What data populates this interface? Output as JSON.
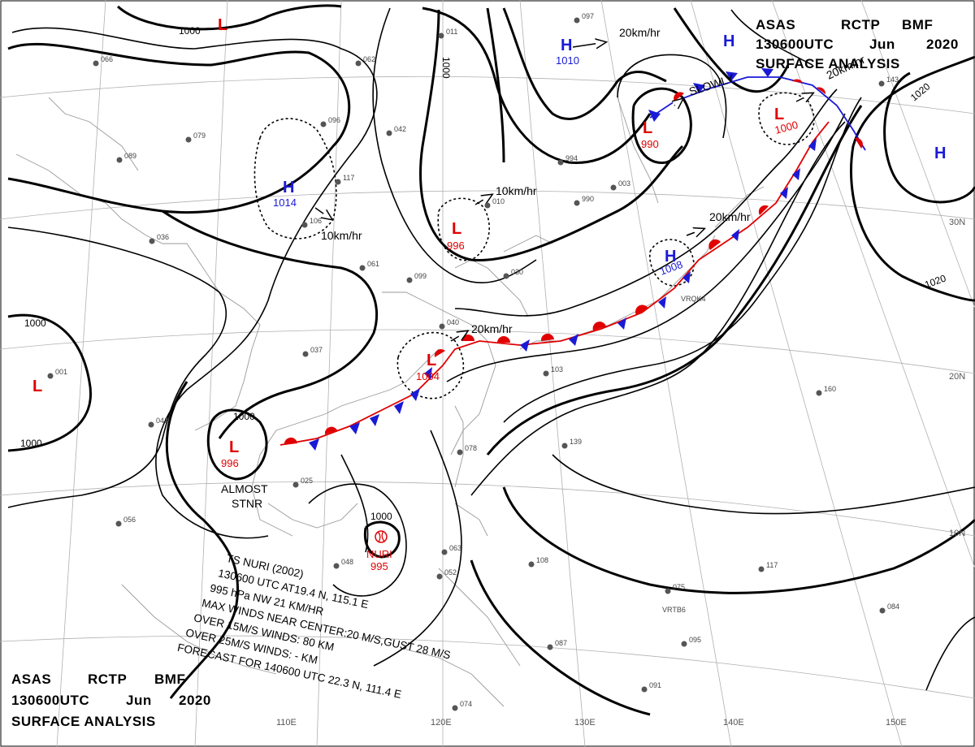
{
  "header_top": {
    "line1": [
      "ASAS",
      "RCTP",
      "BMF"
    ],
    "line2": [
      "130600UTC",
      "Jun",
      "2020"
    ],
    "line3": "SURFACE ANALYSIS"
  },
  "header_bottom": {
    "line1": [
      "ASAS",
      "RCTP",
      "BMF"
    ],
    "line2": [
      "130600UTC",
      "Jun",
      "2020"
    ],
    "line3": "SURFACE ANALYSIS"
  },
  "typhoon_info": [
    "TS NURI  (2002)",
    "130600 UTC  AT19.4 N, 115.1 E",
    "995 hPa  NW  21 KM/HR",
    "MAX WINDS NEAR CENTER:20 M/S,GUST 28 M/S",
    "OVER 15M/S WINDS: 80 KM",
    "OVER 25M/S WINDS: - KM",
    "FORECAST FOR 140600 UTC 22.3 N, 111.4 E"
  ],
  "longitude_labels": [
    "110E",
    "120E",
    "130E",
    "140E",
    "150E"
  ],
  "latitude_labels": [
    "30N",
    "20N",
    "10N"
  ],
  "isobar_labels": [
    "1000",
    "1000",
    "1000",
    "1000",
    "1000",
    "1000",
    "1020",
    "1020"
  ],
  "pressure_systems": [
    {
      "type": "L",
      "pressure": ""
    },
    {
      "type": "H",
      "pressure": "1010"
    },
    {
      "type": "H",
      "pressure": ""
    },
    {
      "type": "L",
      "pressure": "990"
    },
    {
      "type": "L",
      "pressure": "1000"
    },
    {
      "type": "H",
      "pressure": ""
    },
    {
      "type": "H",
      "pressure": "1014"
    },
    {
      "type": "L",
      "pressure": "996"
    },
    {
      "type": "H",
      "pressure": "1008"
    },
    {
      "type": "L",
      "pressure": "1004"
    },
    {
      "type": "L",
      "pressure": ""
    },
    {
      "type": "L",
      "pressure": "996"
    }
  ],
  "typhoon": {
    "name": "NURI",
    "pressure": "995"
  },
  "speed_labels": [
    "20km/hr",
    "10km/hr",
    "10km/hr",
    "20km/hr",
    "20km/hr",
    "20km/hr"
  ],
  "notes": {
    "slowly": "SLOWLY",
    "almost": "ALMOST",
    "stnr": "STNR"
  },
  "station_labels": [
    "VRTB6",
    "VRQK4"
  ],
  "station_obs": [
    "066",
    "062",
    "011",
    "097",
    "143",
    "079",
    "096",
    "042",
    "117",
    "089",
    "106",
    "036",
    "099",
    "040",
    "030",
    "037",
    "041",
    "001",
    "056",
    "048",
    "025",
    "078",
    "108",
    "075",
    "087",
    "095",
    "091",
    "084",
    "139",
    "160",
    "117",
    "052",
    "063",
    "074",
    "103",
    "061",
    "003",
    "990",
    "994",
    "010"
  ],
  "colors": {
    "high": "#1a1ad6",
    "low": "#e00000",
    "isobar": "#000000",
    "grid": "#b0b0b0",
    "coast": "#9a9a9a"
  }
}
